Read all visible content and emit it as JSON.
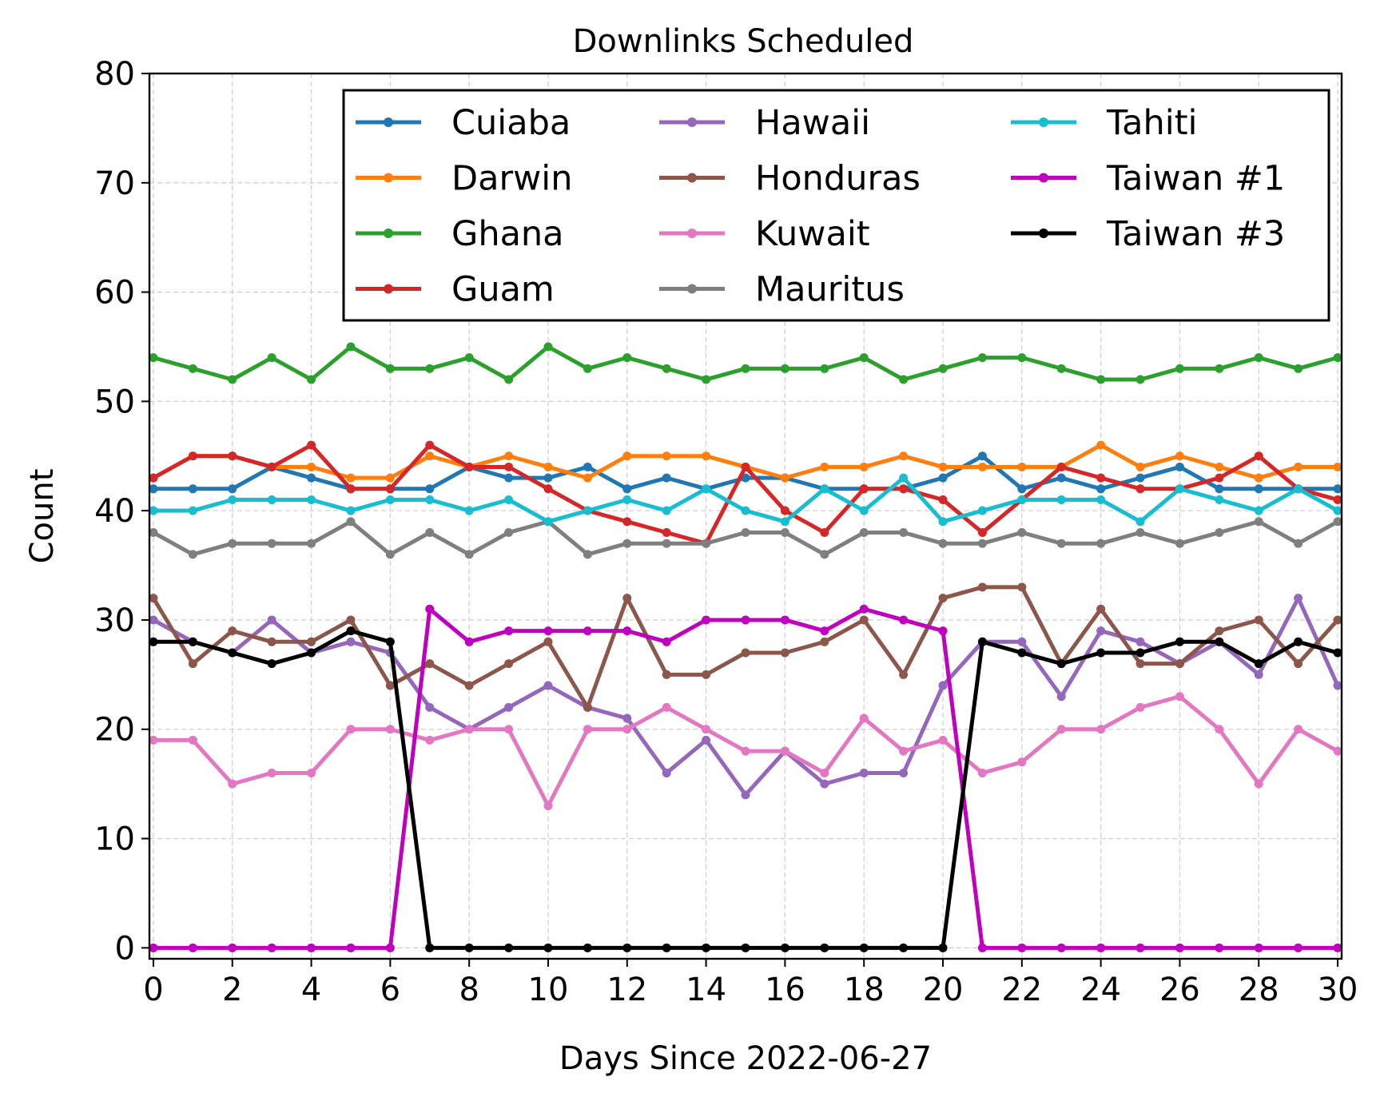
{
  "chart_data": {
    "type": "line",
    "title": "Downlinks Scheduled",
    "xlabel": "Days Since 2022-06-27",
    "ylabel": "Count",
    "xlim": [
      -0.1,
      30.1
    ],
    "ylim": [
      -1,
      80
    ],
    "xticks": [
      0,
      2,
      4,
      6,
      8,
      10,
      12,
      14,
      16,
      18,
      20,
      22,
      24,
      26,
      28,
      30
    ],
    "yticks": [
      0,
      10,
      20,
      30,
      40,
      50,
      60,
      70,
      80
    ],
    "grid": true,
    "legend_position": "top-right",
    "legend_columns": 3,
    "x": [
      0,
      1,
      2,
      3,
      4,
      5,
      6,
      7,
      8,
      9,
      10,
      11,
      12,
      13,
      14,
      15,
      16,
      17,
      18,
      19,
      20,
      21,
      22,
      23,
      24,
      25,
      26,
      27,
      28,
      29,
      30
    ],
    "series": [
      {
        "name": "Cuiaba",
        "color": "#1f77b4",
        "values": [
          42,
          42,
          42,
          44,
          43,
          42,
          42,
          42,
          44,
          43,
          43,
          44,
          42,
          43,
          42,
          43,
          43,
          42,
          42,
          42,
          43,
          45,
          42,
          43,
          42,
          43,
          44,
          42,
          42,
          42,
          42
        ]
      },
      {
        "name": "Darwin",
        "color": "#ff7f0e",
        "values": [
          43,
          45,
          45,
          44,
          44,
          43,
          43,
          45,
          44,
          45,
          44,
          43,
          45,
          45,
          45,
          44,
          43,
          44,
          44,
          45,
          44,
          44,
          44,
          44,
          46,
          44,
          45,
          44,
          43,
          44,
          44
        ]
      },
      {
        "name": "Ghana",
        "color": "#2ca02c",
        "values": [
          54,
          53,
          52,
          54,
          52,
          55,
          53,
          53,
          54,
          52,
          55,
          53,
          54,
          53,
          52,
          53,
          53,
          53,
          54,
          52,
          53,
          54,
          54,
          53,
          52,
          52,
          53,
          53,
          54,
          53,
          54
        ]
      },
      {
        "name": "Guam",
        "color": "#d62728",
        "values": [
          43,
          45,
          45,
          44,
          46,
          42,
          42,
          46,
          44,
          44,
          42,
          40,
          39,
          38,
          37,
          44,
          40,
          38,
          42,
          42,
          41,
          38,
          41,
          44,
          43,
          42,
          42,
          43,
          45,
          42,
          41
        ]
      },
      {
        "name": "Hawaii",
        "color": "#9467bd",
        "values": [
          30,
          28,
          27,
          30,
          27,
          28,
          27,
          22,
          20,
          22,
          24,
          22,
          21,
          16,
          19,
          14,
          18,
          15,
          16,
          16,
          24,
          28,
          28,
          23,
          29,
          28,
          26,
          28,
          25,
          32,
          24
        ]
      },
      {
        "name": "Honduras",
        "color": "#8c564b",
        "values": [
          32,
          26,
          29,
          28,
          28,
          30,
          24,
          26,
          24,
          26,
          28,
          22,
          32,
          25,
          25,
          27,
          27,
          28,
          30,
          25,
          32,
          33,
          33,
          26,
          31,
          26,
          26,
          29,
          30,
          26,
          30
        ]
      },
      {
        "name": "Kuwait",
        "color": "#e377c2",
        "values": [
          19,
          19,
          15,
          16,
          16,
          20,
          20,
          19,
          20,
          20,
          13,
          20,
          20,
          22,
          20,
          18,
          18,
          16,
          21,
          18,
          19,
          16,
          17,
          20,
          20,
          22,
          23,
          20,
          15,
          20,
          18
        ]
      },
      {
        "name": "Mauritus",
        "color": "#7f7f7f",
        "values": [
          38,
          36,
          37,
          37,
          37,
          39,
          36,
          38,
          36,
          38,
          39,
          36,
          37,
          37,
          37,
          38,
          38,
          36,
          38,
          38,
          37,
          37,
          38,
          37,
          37,
          38,
          37,
          38,
          39,
          37,
          39
        ]
      },
      {
        "name": "Tahiti",
        "color": "#17becf",
        "values": [
          40,
          40,
          41,
          41,
          41,
          40,
          41,
          41,
          40,
          41,
          39,
          40,
          41,
          40,
          42,
          40,
          39,
          42,
          40,
          43,
          39,
          40,
          41,
          41,
          41,
          39,
          42,
          41,
          40,
          42,
          40
        ]
      },
      {
        "name": "Taiwan #1",
        "color": "#bf00bf",
        "values": [
          0,
          0,
          0,
          0,
          0,
          0,
          0,
          31,
          28,
          29,
          29,
          29,
          29,
          28,
          30,
          30,
          30,
          29,
          31,
          30,
          29,
          0,
          0,
          0,
          0,
          0,
          0,
          0,
          0,
          0,
          0
        ]
      },
      {
        "name": "Taiwan #3",
        "color": "#000000",
        "values": [
          28,
          28,
          27,
          26,
          27,
          29,
          28,
          0,
          0,
          0,
          0,
          0,
          0,
          0,
          0,
          0,
          0,
          0,
          0,
          0,
          0,
          28,
          27,
          26,
          27,
          27,
          28,
          28,
          26,
          28,
          27
        ]
      }
    ]
  }
}
